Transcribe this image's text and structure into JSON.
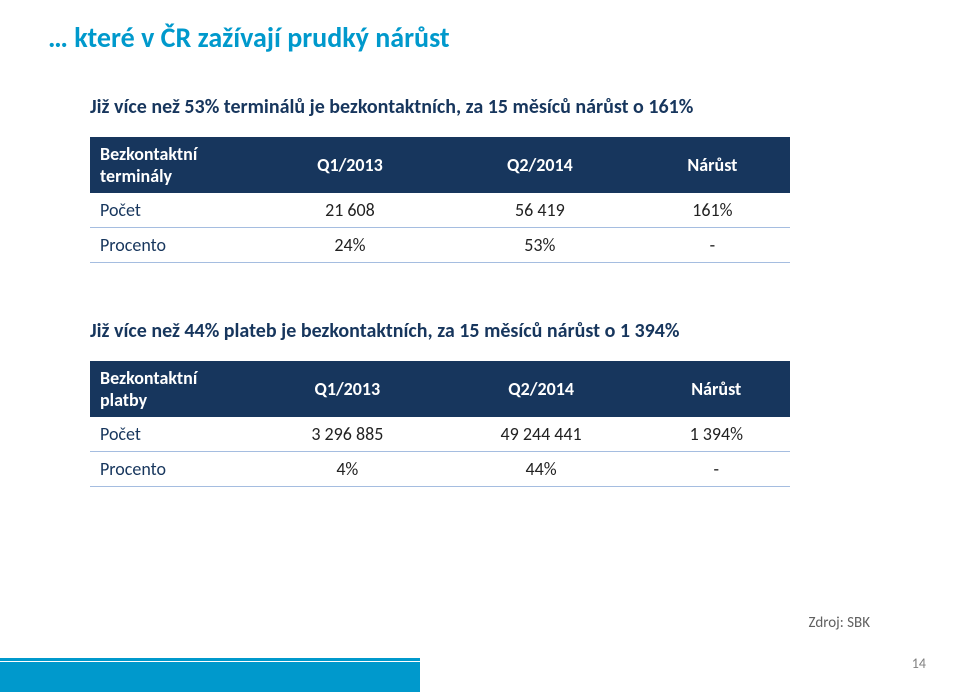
{
  "title": {
    "dots": "… ",
    "text": "které v ČR zažívají prudký nárůst",
    "color": "#0099cc",
    "fontsize": 28
  },
  "section1": {
    "subtitle": "Již více než 53% terminálů je bezkontaktních, za 15 měsíců nárůst o 161%",
    "table": {
      "header_bg": "#17365d",
      "header_fg": "#ffffff",
      "columns": [
        "Bezkontaktní terminály",
        "Q1/2013",
        "Q2/2014",
        "Nárůst"
      ],
      "rows": [
        [
          "Počet",
          "21 608",
          "56 419",
          "161%"
        ],
        [
          "Procento",
          "24%",
          "53%",
          "-"
        ]
      ]
    }
  },
  "section2": {
    "subtitle": "Již více než 44% plateb je bezkontaktních, za 15 měsíců nárůst o 1 394%",
    "table": {
      "header_bg": "#17365d",
      "header_fg": "#ffffff",
      "columns": [
        "Bezkontaktní platby",
        "Q1/2013",
        "Q2/2014",
        "Nárůst"
      ],
      "rows": [
        [
          "Počet",
          "3 296 885",
          "49 244 441",
          "1 394%"
        ],
        [
          "Procento",
          "4%",
          "44%",
          "-"
        ]
      ]
    }
  },
  "source": "Zdroj: SBK",
  "page_number": "14",
  "footer_bar_color": "#0099cc"
}
